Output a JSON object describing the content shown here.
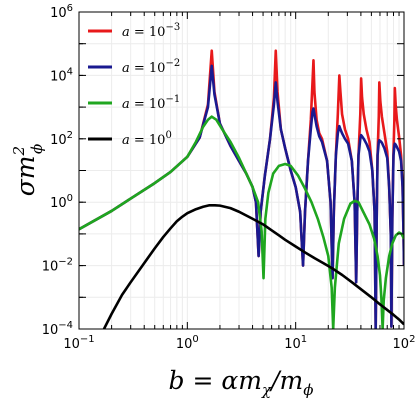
{
  "chart_data": {
    "type": "line",
    "xlabel": "b = αm",
    "ylabel": "σm",
    "xscale": "log",
    "yscale": "log",
    "xlim": [
      0.1,
      100
    ],
    "ylim": [
      0.0001,
      1000000
    ],
    "x_ticks": [
      {
        "value": 0.1,
        "base": "10",
        "exp": "−1"
      },
      {
        "value": 1,
        "base": "10",
        "exp": "0"
      },
      {
        "value": 10,
        "base": "10",
        "exp": "1"
      },
      {
        "value": 100,
        "base": "10",
        "exp": "2"
      }
    ],
    "y_ticks": [
      {
        "value": 0.0001,
        "base": "10",
        "exp": "−4"
      },
      {
        "value": 0.01,
        "base": "10",
        "exp": "−2"
      },
      {
        "value": 1,
        "base": "10",
        "exp": "0"
      },
      {
        "value": 100,
        "base": "10",
        "exp": "2"
      },
      {
        "value": 10000,
        "base": "10",
        "exp": "4"
      },
      {
        "value": 1000000,
        "base": "10",
        "exp": "6"
      }
    ],
    "grid": true,
    "legend_position": "top-left",
    "series": [
      {
        "name": "a = 10−3",
        "legend": {
          "lhs": "a",
          "base": "= 10",
          "exp": "−3"
        },
        "color": "#e8191b",
        "points": [
          [
            0.1,
            0.14
          ],
          [
            0.2,
            0.53
          ],
          [
            0.3,
            1.3
          ],
          [
            0.5,
            4
          ],
          [
            0.7,
            9
          ],
          [
            1.0,
            27
          ],
          [
            1.3,
            110
          ],
          [
            1.55,
            1200
          ],
          [
            1.68,
            60000
          ],
          [
            1.78,
            3000
          ],
          [
            2.0,
            300
          ],
          [
            2.5,
            60
          ],
          [
            3.0,
            20
          ],
          [
            3.5,
            8
          ],
          [
            4.0,
            3
          ],
          [
            4.3,
            1
          ],
          [
            4.55,
            0.02
          ],
          [
            4.75,
            0.5
          ],
          [
            5.2,
            7
          ],
          [
            5.8,
            100
          ],
          [
            6.3,
            2000
          ],
          [
            6.55,
            60000
          ],
          [
            6.8,
            3000
          ],
          [
            7.3,
            200
          ],
          [
            8.0,
            50
          ],
          [
            9.0,
            10
          ],
          [
            10.0,
            3
          ],
          [
            11.0,
            0.5
          ],
          [
            11.7,
            0.01
          ],
          [
            12.2,
            0.5
          ],
          [
            13.0,
            20
          ],
          [
            13.8,
            400
          ],
          [
            14.3,
            6000
          ],
          [
            14.6,
            30000
          ],
          [
            14.9,
            3000
          ],
          [
            15.6,
            400
          ],
          [
            16.5,
            150
          ],
          [
            17.5,
            100
          ],
          [
            19.5,
            20
          ],
          [
            21.0,
            1
          ],
          [
            21.9,
            0.004
          ],
          [
            22.5,
            0.5
          ],
          [
            23.5,
            30
          ],
          [
            24.5,
            600
          ],
          [
            25.3,
            10000
          ],
          [
            25.9,
            3000
          ],
          [
            26.8,
            600
          ],
          [
            28.5,
            200
          ],
          [
            30.5,
            100
          ],
          [
            33.0,
            20
          ],
          [
            35.0,
            1
          ],
          [
            36.2,
            0.003
          ],
          [
            37.0,
            0.5
          ],
          [
            38.0,
            30
          ],
          [
            39.5,
            600
          ],
          [
            40.2,
            8000
          ],
          [
            41.0,
            2000
          ],
          [
            42.5,
            600
          ],
          [
            45.0,
            200
          ],
          [
            48.0,
            80
          ],
          [
            51.0,
            10
          ],
          [
            53.5,
            0.5
          ],
          [
            54.8,
            0.0001
          ],
          [
            56.0,
            0.3
          ],
          [
            57.0,
            30
          ],
          [
            58.5,
            500
          ],
          [
            59.2,
            6000
          ],
          [
            60.5,
            1500
          ],
          [
            62.5,
            500
          ],
          [
            66.0,
            150
          ],
          [
            70.0,
            40
          ],
          [
            73.0,
            3
          ],
          [
            75.5,
            0.1
          ],
          [
            76.5,
            0.00012
          ],
          [
            78.0,
            0.3
          ],
          [
            80.0,
            40
          ],
          [
            81.5,
            400
          ],
          [
            82.3,
            4000
          ],
          [
            83.8,
            1200
          ],
          [
            86.0,
            400
          ],
          [
            90.0,
            120
          ],
          [
            94.0,
            30
          ],
          [
            97.0,
            3
          ],
          [
            99.0,
            0.1
          ],
          [
            100.0,
            0.01
          ]
        ]
      },
      {
        "name": "a = 10−2",
        "legend": {
          "lhs": "a",
          "base": "= 10",
          "exp": "−2"
        },
        "color": "#1a1a90",
        "points": [
          [
            0.1,
            0.14
          ],
          [
            0.2,
            0.53
          ],
          [
            0.3,
            1.3
          ],
          [
            0.5,
            4
          ],
          [
            0.7,
            9
          ],
          [
            1.0,
            27
          ],
          [
            1.3,
            110
          ],
          [
            1.55,
            1000
          ],
          [
            1.68,
            20000
          ],
          [
            1.78,
            2500
          ],
          [
            2.0,
            300
          ],
          [
            2.5,
            60
          ],
          [
            3.0,
            20
          ],
          [
            3.5,
            8
          ],
          [
            4.0,
            3
          ],
          [
            4.3,
            1
          ],
          [
            4.55,
            0.02
          ],
          [
            4.75,
            0.5
          ],
          [
            5.2,
            7
          ],
          [
            5.8,
            100
          ],
          [
            6.3,
            1200
          ],
          [
            6.55,
            6000
          ],
          [
            6.8,
            1500
          ],
          [
            7.3,
            200
          ],
          [
            8.0,
            50
          ],
          [
            9.0,
            10
          ],
          [
            10.0,
            3
          ],
          [
            11.0,
            0.5
          ],
          [
            11.7,
            0.01
          ],
          [
            12.2,
            0.5
          ],
          [
            13.0,
            20
          ],
          [
            13.8,
            200
          ],
          [
            14.3,
            700
          ],
          [
            14.6,
            900
          ],
          [
            14.9,
            600
          ],
          [
            15.6,
            250
          ],
          [
            16.5,
            120
          ],
          [
            17.5,
            80
          ],
          [
            19.5,
            20
          ],
          [
            21.0,
            1
          ],
          [
            21.9,
            0.004
          ],
          [
            22.5,
            0.5
          ],
          [
            23.5,
            30
          ],
          [
            24.5,
            150
          ],
          [
            25.3,
            250
          ],
          [
            25.9,
            200
          ],
          [
            26.8,
            150
          ],
          [
            28.5,
            100
          ],
          [
            30.5,
            70
          ],
          [
            33.0,
            20
          ],
          [
            35.0,
            1
          ],
          [
            36.2,
            0.003
          ],
          [
            37.0,
            0.5
          ],
          [
            38.0,
            30
          ],
          [
            39.5,
            100
          ],
          [
            40.2,
            130
          ],
          [
            41.0,
            120
          ],
          [
            42.5,
            100
          ],
          [
            45.0,
            70
          ],
          [
            48.0,
            40
          ],
          [
            51.0,
            10
          ],
          [
            53.5,
            0.5
          ],
          [
            54.8,
            0.0001
          ],
          [
            56.0,
            0.3
          ],
          [
            57.0,
            30
          ],
          [
            58.5,
            80
          ],
          [
            59.2,
            90
          ],
          [
            60.5,
            85
          ],
          [
            62.5,
            75
          ],
          [
            66.0,
            50
          ],
          [
            70.0,
            25
          ],
          [
            73.0,
            3
          ],
          [
            75.5,
            0.1
          ],
          [
            76.5,
            0.00012
          ],
          [
            78.0,
            0.3
          ],
          [
            80.0,
            30
          ],
          [
            81.5,
            60
          ],
          [
            82.3,
            70
          ],
          [
            83.8,
            65
          ],
          [
            86.0,
            55
          ],
          [
            90.0,
            40
          ],
          [
            94.0,
            20
          ],
          [
            97.0,
            3
          ],
          [
            99.0,
            0.1
          ],
          [
            100.0,
            0.01
          ]
        ]
      },
      {
        "name": "a = 10−1",
        "legend": {
          "lhs": "a",
          "base": "= 10",
          "exp": "−1"
        },
        "color": "#1fa61f",
        "points": [
          [
            0.1,
            0.14
          ],
          [
            0.2,
            0.53
          ],
          [
            0.3,
            1.3
          ],
          [
            0.5,
            4
          ],
          [
            0.7,
            9
          ],
          [
            1.0,
            27
          ],
          [
            1.2,
            80
          ],
          [
            1.4,
            240
          ],
          [
            1.55,
            400
          ],
          [
            1.68,
            500
          ],
          [
            1.85,
            400
          ],
          [
            2.1,
            200
          ],
          [
            2.5,
            80
          ],
          [
            3.0,
            25
          ],
          [
            3.5,
            8
          ],
          [
            4.0,
            3
          ],
          [
            4.5,
            1
          ],
          [
            4.85,
            0.12
          ],
          [
            5.05,
            0.004
          ],
          [
            5.25,
            0.3
          ],
          [
            5.6,
            2
          ],
          [
            6.2,
            8
          ],
          [
            7.0,
            14
          ],
          [
            8.0,
            16
          ],
          [
            9.0,
            14
          ],
          [
            10.5,
            7
          ],
          [
            12.0,
            3
          ],
          [
            14.0,
            1
          ],
          [
            16.0,
            0.3
          ],
          [
            18.0,
            0.08
          ],
          [
            20.0,
            0.02
          ],
          [
            21.5,
            0.002
          ],
          [
            22.2,
            0.0001
          ],
          [
            23.0,
            0.002
          ],
          [
            25.0,
            0.05
          ],
          [
            28.0,
            0.3
          ],
          [
            32.0,
            0.9
          ],
          [
            35.0,
            1.1
          ],
          [
            38.0,
            1.0
          ],
          [
            42.0,
            0.5
          ],
          [
            48.0,
            0.2
          ],
          [
            53.0,
            0.07
          ],
          [
            57.0,
            0.02
          ],
          [
            60.0,
            0.005
          ],
          [
            62.0,
            0.0008
          ],
          [
            63.5,
            0.0001
          ],
          [
            65.0,
            0.0008
          ],
          [
            68.0,
            0.004
          ],
          [
            73.0,
            0.02
          ],
          [
            78.0,
            0.05
          ],
          [
            84.0,
            0.09
          ],
          [
            90.0,
            0.11
          ],
          [
            95.0,
            0.1
          ],
          [
            100.0,
            0.07
          ]
        ]
      },
      {
        "name": "a = 100",
        "legend": {
          "lhs": "a",
          "base": "= 10",
          "exp": "0"
        },
        "color": "#000000",
        "points": [
          [
            0.17,
            0.0001
          ],
          [
            0.2,
            0.0003
          ],
          [
            0.25,
            0.0012
          ],
          [
            0.3,
            0.003
          ],
          [
            0.4,
            0.012
          ],
          [
            0.5,
            0.035
          ],
          [
            0.6,
            0.08
          ],
          [
            0.7,
            0.15
          ],
          [
            0.8,
            0.25
          ],
          [
            0.9,
            0.35
          ],
          [
            1.0,
            0.45
          ],
          [
            1.2,
            0.6
          ],
          [
            1.4,
            0.72
          ],
          [
            1.6,
            0.8
          ],
          [
            1.8,
            0.8
          ],
          [
            2.0,
            0.78
          ],
          [
            2.5,
            0.65
          ],
          [
            3.0,
            0.5
          ],
          [
            4.0,
            0.3
          ],
          [
            5.0,
            0.2
          ],
          [
            6.0,
            0.13
          ],
          [
            7.0,
            0.09
          ],
          [
            8.0,
            0.065
          ],
          [
            10.0,
            0.04
          ],
          [
            12.0,
            0.027
          ],
          [
            15.0,
            0.017
          ],
          [
            18.0,
            0.012
          ],
          [
            22.0,
            0.008
          ],
          [
            27.0,
            0.005
          ],
          [
            33.0,
            0.003
          ],
          [
            40.0,
            0.0018
          ],
          [
            50.0,
            0.001
          ],
          [
            60.0,
            0.0006
          ],
          [
            70.0,
            0.0004
          ],
          [
            80.0,
            0.00028
          ],
          [
            90.0,
            0.0002
          ],
          [
            100.0,
            0.00014
          ]
        ]
      }
    ]
  }
}
